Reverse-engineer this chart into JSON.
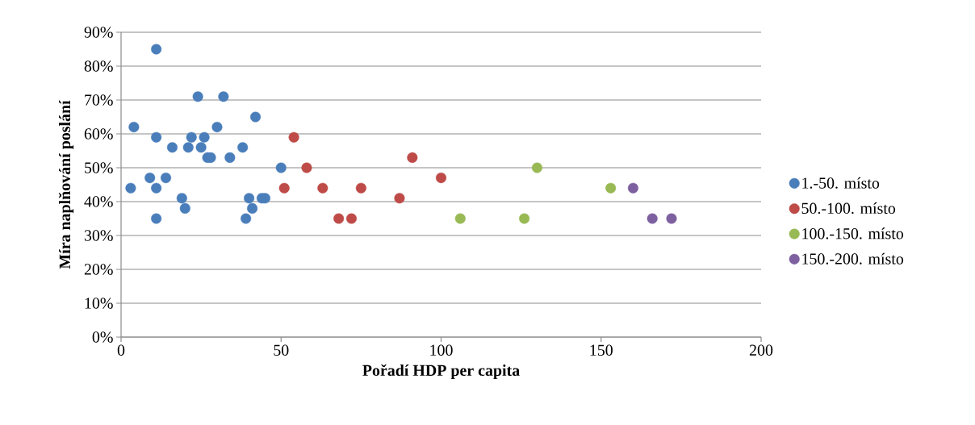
{
  "chart_data": {
    "type": "scatter",
    "xlabel": "Pořadí HDP per capita",
    "ylabel": "Míra naplňování poslání",
    "xlim": [
      0,
      200
    ],
    "xticks": [
      0,
      50,
      100,
      150,
      200
    ],
    "ylim": [
      0,
      90
    ],
    "yticks": [
      {
        "value": 0,
        "label": "0%"
      },
      {
        "value": 10,
        "label": "10%"
      },
      {
        "value": 20,
        "label": "20%"
      },
      {
        "value": 30,
        "label": "30%"
      },
      {
        "value": 40,
        "label": "40%"
      },
      {
        "value": 50,
        "label": "50%"
      },
      {
        "value": 60,
        "label": "60%"
      },
      {
        "value": 70,
        "label": "70%"
      },
      {
        "value": 80,
        "label": "80%"
      },
      {
        "value": 90,
        "label": "90%"
      }
    ],
    "grid": "y",
    "legend": "right",
    "marker": "circle",
    "series": [
      {
        "name": "1.-50. místo",
        "color": "#4a7ebb",
        "x": [
          3,
          4,
          9,
          11,
          11,
          11,
          11,
          14,
          16,
          19,
          20,
          21,
          22,
          24,
          25,
          26,
          27,
          28,
          30,
          32,
          34,
          38,
          39,
          40,
          41,
          42,
          44,
          45,
          50
        ],
        "values": [
          44,
          62,
          47,
          85,
          59,
          44,
          35,
          47,
          56,
          41,
          38,
          56,
          59,
          71,
          56,
          59,
          53,
          53,
          62,
          71,
          53,
          56,
          35,
          41,
          38,
          65,
          41,
          41,
          50
        ]
      },
      {
        "name": "50.-100. místo",
        "color": "#be4b48",
        "x": [
          51,
          54,
          58,
          63,
          68,
          72,
          75,
          87,
          91,
          100
        ],
        "values": [
          44,
          59,
          50,
          44,
          35,
          35,
          44,
          41,
          53,
          47
        ]
      },
      {
        "name": "100.-150. místo",
        "color": "#98b954",
        "x": [
          106,
          126,
          130,
          153
        ],
        "values": [
          35,
          35,
          50,
          44
        ]
      },
      {
        "name": "150.-200. místo",
        "color": "#7d60a0",
        "x": [
          160,
          166,
          172
        ],
        "values": [
          44,
          35,
          35
        ]
      }
    ]
  }
}
